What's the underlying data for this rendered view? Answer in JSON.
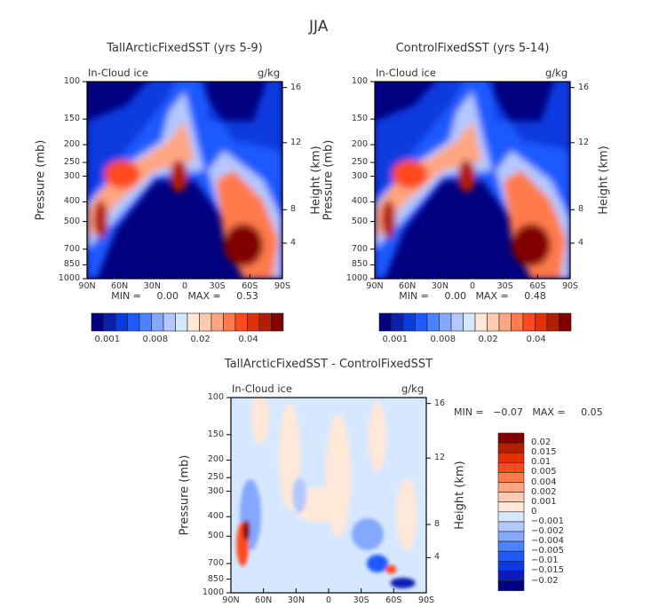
{
  "title": "JJA",
  "colors": [
    "#000080",
    "#0a1fb0",
    "#0a3be0",
    "#1e5aff",
    "#4a82ff",
    "#84a8ff",
    "#b4c8ff",
    "#d6e8ff",
    "#ffe8d8",
    "#ffcab2",
    "#ffa680",
    "#ff7a4c",
    "#ff4a1e",
    "#e23000",
    "#b41e00",
    "#820000"
  ],
  "chart_data": [
    {
      "type": "heatmap",
      "title": "TallArcticFixedSST (yrs 5-9)",
      "left_label": "In-Cloud ice",
      "units": "g/kg",
      "ylabel": "Pressure (mb)",
      "ylabel_right": "Height (km)",
      "xticks": [
        "90N",
        "60N",
        "30N",
        "0",
        "30S",
        "60S",
        "90S"
      ],
      "yticks": [
        "100",
        "150",
        "200",
        "250",
        "300",
        "400",
        "500",
        "700",
        "850",
        "1000"
      ],
      "yticks_right": [
        "16",
        "12",
        "8",
        "4"
      ],
      "stats": "MIN =     0.00   MAX =     0.53",
      "colorbar_labels": [
        "0.001",
        "0.008",
        "0.02",
        "0.04"
      ]
    },
    {
      "type": "heatmap",
      "title": "ControlFixedSST (yrs 5-14)",
      "left_label": "In-Cloud ice",
      "units": "g/kg",
      "ylabel": "Pressure (mb)",
      "ylabel_right": "Height (km)",
      "xticks": [
        "90N",
        "60N",
        "30N",
        "0",
        "30S",
        "60S",
        "90S"
      ],
      "yticks": [
        "100",
        "150",
        "200",
        "250",
        "300",
        "400",
        "500",
        "700",
        "850",
        "1000"
      ],
      "yticks_right": [
        "16",
        "12",
        "8",
        "4"
      ],
      "stats": "MIN =     0.00   MAX =     0.48",
      "colorbar_labels": [
        "0.001",
        "0.008",
        "0.02",
        "0.04"
      ]
    },
    {
      "type": "heatmap",
      "title": "TallArcticFixedSST - ControlFixedSST",
      "left_label": "In-Cloud ice",
      "units": "g/kg",
      "ylabel": "Pressure (mb)",
      "ylabel_right": "Height (km)",
      "xticks": [
        "90N",
        "60N",
        "30N",
        "0",
        "30S",
        "60S",
        "90S"
      ],
      "yticks": [
        "100",
        "150",
        "200",
        "250",
        "300",
        "400",
        "500",
        "700",
        "850",
        "1000"
      ],
      "yticks_right": [
        "16",
        "12",
        "8",
        "4"
      ],
      "stats": "MIN =   −0.07   MAX =     0.05",
      "colorbar_labels": [
        "0.02",
        "0.015",
        "0.01",
        "0.005",
        "0.004",
        "0.002",
        "0.001",
        "0",
        "−0.001",
        "−0.002",
        "−0.004",
        "−0.005",
        "−0.01",
        "−0.015",
        "−0.02"
      ]
    }
  ]
}
